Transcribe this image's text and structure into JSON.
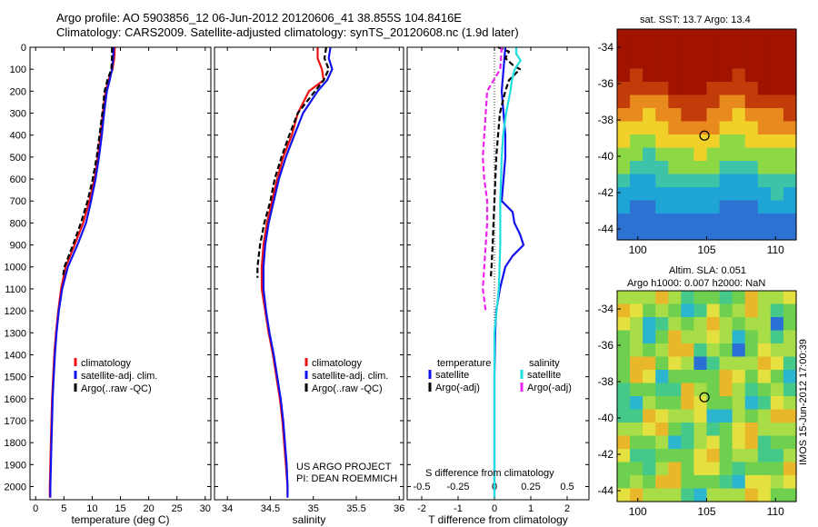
{
  "header": {
    "line1": "Argo profile: AO 5903856_12 06-Jun-2012 20120606_41 38.855S 104.8416E",
    "line2": "Climatology: CARS2009. Satellite-adjusted climatology: synTS_20120608.nc (1.9d later)"
  },
  "depth_ticks": [
    "0",
    "100",
    "200",
    "300",
    "400",
    "500",
    "600",
    "700",
    "800",
    "900",
    "1000",
    "1100",
    "1200",
    "1300",
    "1400",
    "1500",
    "1600",
    "1700",
    "1800",
    "1900",
    "2000"
  ],
  "colors": {
    "climatology": "#ee1111",
    "satellite": "#1111ee",
    "argo": "#000000",
    "sat_salinity": "#22dddd",
    "argo_salinity": "#ee22ee"
  },
  "notes": {
    "project": "US ARGO PROJECT",
    "pi": "PI: DEAN ROEMMICH",
    "s_diff_title": "S difference from climatology",
    "map1_title": "sat. SST: 13.7  Argo: 13.4",
    "map2_title1": "Altim. SLA: 0.051",
    "map2_title2": "Argo h1000: 0.007 h2000: NaN",
    "stamp": "IMOS 15-Jun-2012 17:00:39"
  },
  "chart_data": [
    {
      "type": "line",
      "xlabel": "temperature (deg C)",
      "xlim": [
        -1,
        31
      ],
      "ylim": [
        2060,
        0
      ],
      "xticks": [
        "0",
        "5",
        "10",
        "15",
        "20",
        "25",
        "30"
      ],
      "legend": [
        "climatology",
        "satellite-adj. clim.",
        "Argo(..raw -QC)"
      ],
      "legend_position": "lower-center",
      "series": [
        {
          "name": "climatology",
          "depth": [
            0,
            50,
            100,
            150,
            200,
            300,
            400,
            500,
            600,
            700,
            800,
            900,
            1000,
            1100,
            1200,
            1300,
            1400,
            1500,
            1600,
            1700,
            1800,
            1900,
            2000,
            2050
          ],
          "values": [
            14.0,
            13.9,
            13.6,
            12.9,
            12.4,
            11.9,
            11.5,
            11.0,
            10.4,
            9.5,
            8.4,
            6.9,
            5.3,
            4.5,
            4.0,
            3.6,
            3.3,
            3.1,
            2.9,
            2.8,
            2.7,
            2.6,
            2.5,
            2.5
          ]
        },
        {
          "name": "satellite-adj. clim.",
          "depth": [
            0,
            50,
            100,
            150,
            200,
            300,
            400,
            500,
            600,
            700,
            800,
            900,
            1000,
            1100,
            1200,
            1300,
            1400,
            1500,
            1600,
            1700,
            1800,
            1900,
            2000,
            2050
          ],
          "values": [
            13.8,
            13.7,
            13.5,
            13.1,
            12.6,
            12.1,
            11.7,
            11.2,
            10.6,
            9.8,
            8.9,
            7.4,
            5.7,
            4.7,
            4.1,
            3.7,
            3.4,
            3.2,
            3.0,
            2.9,
            2.8,
            2.7,
            2.6,
            2.6
          ]
        },
        {
          "name": "Argo(..raw -QC)",
          "depth": [
            0,
            50,
            100,
            150,
            200,
            300,
            400,
            500,
            600,
            700,
            800,
            900,
            1000,
            1050
          ],
          "values": [
            13.5,
            13.5,
            13.4,
            12.7,
            12.2,
            11.8,
            11.3,
            10.8,
            10.1,
            9.2,
            8.0,
            6.6,
            5.1,
            4.8
          ]
        }
      ]
    },
    {
      "type": "line",
      "xlabel": "salinity",
      "xlim": [
        33.85,
        36.05
      ],
      "ylim": [
        2060,
        0
      ],
      "xticks": [
        "34",
        "34.5",
        "35",
        "35.5",
        "36"
      ],
      "legend": [
        "climatology",
        "satellite-adj. clim.",
        "Argo(..raw -QC)"
      ],
      "legend_position": "lower-center",
      "series": [
        {
          "name": "climatology",
          "depth": [
            0,
            50,
            100,
            150,
            200,
            300,
            400,
            500,
            600,
            700,
            800,
            900,
            1000,
            1100,
            1200,
            1300,
            1400,
            1500,
            1600,
            1700,
            1800,
            1900,
            2000,
            2050
          ],
          "values": [
            35.05,
            35.05,
            35.1,
            35.12,
            34.95,
            34.82,
            34.75,
            34.65,
            34.58,
            34.52,
            34.46,
            34.42,
            34.4,
            34.4,
            34.44,
            34.48,
            34.53,
            34.57,
            34.61,
            34.64,
            34.66,
            34.68,
            34.7,
            34.7
          ]
        },
        {
          "name": "satellite-adj. clim.",
          "depth": [
            0,
            50,
            100,
            150,
            200,
            300,
            400,
            500,
            600,
            700,
            800,
            900,
            1000,
            1100,
            1200,
            1300,
            1400,
            1500,
            1600,
            1700,
            1800,
            1900,
            2000,
            2050
          ],
          "values": [
            35.2,
            35.18,
            35.22,
            35.16,
            35.05,
            34.88,
            34.78,
            34.68,
            34.6,
            34.54,
            34.48,
            34.44,
            34.42,
            34.42,
            34.45,
            34.49,
            34.54,
            34.58,
            34.62,
            34.65,
            34.67,
            34.69,
            34.7,
            34.7
          ]
        },
        {
          "name": "Argo(..raw -QC)",
          "depth": [
            0,
            50,
            100,
            150,
            200,
            300,
            400,
            500,
            600,
            700,
            800,
            900,
            1000,
            1050
          ],
          "values": [
            35.15,
            35.13,
            35.18,
            35.12,
            35.02,
            34.82,
            34.72,
            34.63,
            34.55,
            34.5,
            34.43,
            34.38,
            34.35,
            34.35
          ]
        }
      ]
    },
    {
      "type": "line",
      "xlabel": "T difference from climatology",
      "xlabel_top": "S difference from climatology",
      "xlim": [
        -2.4,
        2.6
      ],
      "ylim": [
        2060,
        0
      ],
      "xticks": [
        "-2",
        "-1",
        "0",
        "1",
        "2"
      ],
      "xticks_top": [
        "-0.5",
        "-0.25",
        "0",
        "0.25",
        "0.5"
      ],
      "legend_groups": [
        "temperature",
        "salinity"
      ],
      "legend": [
        "satellite",
        "Argo(-adj)",
        "satellite",
        "Argo(-adj)"
      ],
      "legend_position": "lower-center",
      "series": [
        {
          "name": "satellite",
          "group": "temperature",
          "depth": [
            0,
            100,
            200,
            300,
            400,
            500,
            600,
            700,
            750,
            800,
            850,
            900,
            950,
            1000,
            1100,
            1200,
            1300,
            1500,
            1700,
            2050
          ],
          "values": [
            0.3,
            0.25,
            0.2,
            0.25,
            0.3,
            0.3,
            0.25,
            0.2,
            0.5,
            0.55,
            0.7,
            0.8,
            0.5,
            0.3,
            0.15,
            0.05,
            0.02,
            0.0,
            0.0,
            0.0
          ]
        },
        {
          "name": "Argo(-adj)",
          "group": "temperature",
          "depth": [
            0,
            20,
            50,
            80,
            100,
            150,
            200,
            300,
            500,
            700,
            900,
            1000,
            1050
          ],
          "values": [
            0.1,
            0.4,
            0.3,
            0.5,
            0.7,
            0.4,
            0.3,
            0.15,
            0.05,
            0.0,
            -0.05,
            -0.08,
            -0.1
          ]
        },
        {
          "name": "satellite",
          "group": "salinity",
          "depth": [
            0,
            30,
            60,
            100,
            150,
            200,
            300,
            400,
            500,
            700,
            900,
            1100,
            1300,
            1500,
            1700,
            2050
          ],
          "values": [
            0.15,
            0.15,
            0.18,
            0.14,
            0.12,
            0.11,
            0.08,
            0.06,
            0.05,
            0.04,
            0.04,
            0.03,
            0.0,
            0.0,
            0.0,
            0.0
          ]
        },
        {
          "name": "Argo(-adj)",
          "group": "salinity",
          "depth": [
            0,
            100,
            200,
            300,
            400,
            500,
            600,
            700,
            800,
            900,
            1000,
            1100,
            1200
          ],
          "values": [
            0.05,
            0.04,
            -0.05,
            -0.06,
            -0.07,
            -0.08,
            -0.07,
            -0.05,
            -0.05,
            -0.06,
            -0.07,
            -0.08,
            -0.06
          ]
        }
      ]
    },
    {
      "type": "heatmap",
      "title": "sat. SST: 13.7  Argo: 13.4",
      "xlim": [
        98.5,
        111.5
      ],
      "ylim": [
        -44.6,
        -33.0
      ],
      "xticks": [
        "100",
        "105",
        "110"
      ],
      "yticks": [
        "-34",
        "-36",
        "-38",
        "-40",
        "-42",
        "-44"
      ],
      "marker": {
        "lon": 104.84,
        "lat": -38.86
      }
    },
    {
      "type": "heatmap",
      "title": "Argo h1000: 0.007 h2000: NaN",
      "xlim": [
        98.5,
        111.5
      ],
      "ylim": [
        -44.6,
        -33.0
      ],
      "xticks": [
        "100",
        "105",
        "110"
      ],
      "yticks": [
        "-34",
        "-36",
        "-38",
        "-40",
        "-42",
        "-44"
      ],
      "marker": {
        "lon": 104.84,
        "lat": -38.86
      }
    }
  ]
}
